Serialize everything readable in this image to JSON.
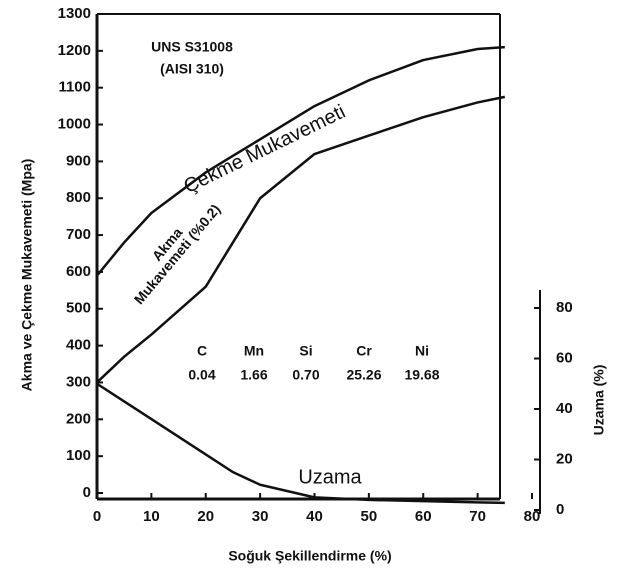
{
  "chart_data": {
    "type": "line",
    "x_label": "Soğuk Şekillendirme  (%)",
    "y_label": "Akma ve Çekme Mukavemeti  (Mpa)",
    "y2_label": "Uzama (%)",
    "x": [
      0,
      5,
      10,
      20,
      25,
      30,
      40,
      50,
      60,
      70,
      75
    ],
    "xlim": [
      0,
      80
    ],
    "xticks": [
      0,
      10,
      20,
      30,
      40,
      50,
      60,
      70,
      80
    ],
    "ylim": [
      0,
      1300
    ],
    "yticks": [
      0,
      100,
      200,
      300,
      400,
      500,
      600,
      700,
      800,
      900,
      1000,
      1100,
      1200,
      1300
    ],
    "y2lim": [
      0,
      80
    ],
    "y2ticks": [
      0,
      20,
      40,
      60,
      80
    ],
    "series": [
      {
        "name": "Çekme Mukavemeti",
        "color": "#111111",
        "values": [
          590,
          680,
          760,
          870,
          915,
          960,
          1050,
          1120,
          1175,
          1205,
          1210
        ]
      },
      {
        "name": "Mukavemeti (%0.2)",
        "color": "#111111",
        "values": [
          300,
          370,
          430,
          560,
          680,
          800,
          920,
          970,
          1020,
          1060,
          1075
        ]
      },
      {
        "name": "Uzama",
        "color": "#111111",
        "axis": "y2",
        "values": [
          50,
          43,
          36,
          22,
          15,
          10,
          5,
          4,
          3.5,
          3,
          2.8
        ]
      }
    ],
    "annotations": {
      "alloy": "UNS S31008",
      "aisi": "(AISI 310)",
      "akma": "Akma"
    },
    "composition": {
      "elements": [
        "C",
        "Mn",
        "Si",
        "Cr",
        "Ni"
      ],
      "values": [
        "0.04",
        "1.66",
        "0.70",
        "25.26",
        "19.68"
      ]
    }
  }
}
